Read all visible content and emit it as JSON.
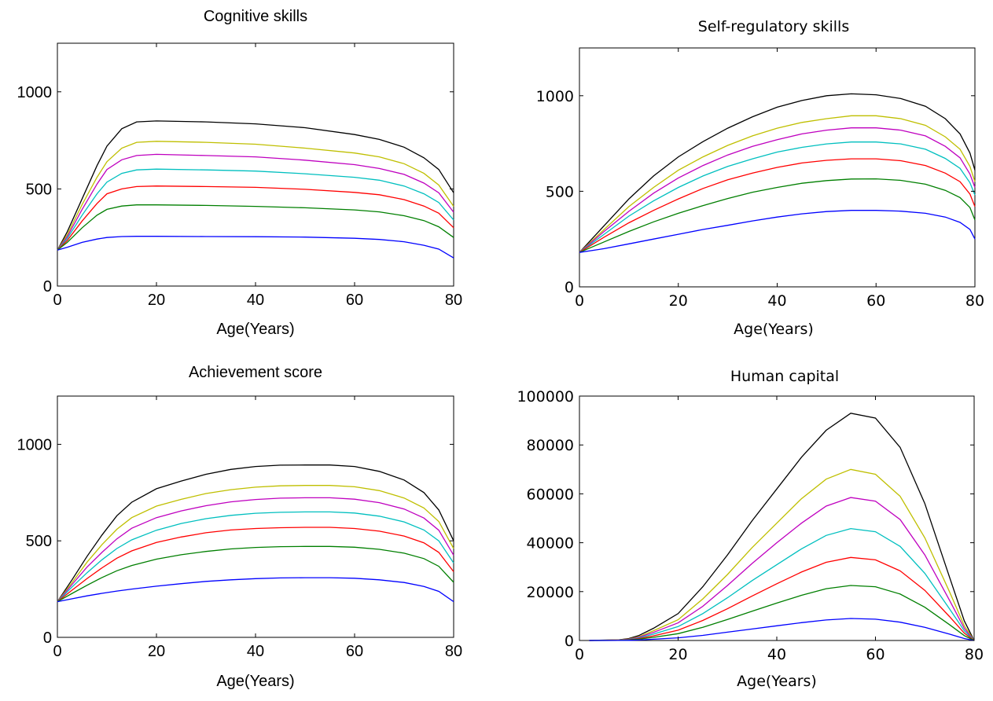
{
  "chart_data": [
    {
      "type": "line",
      "title": "Cognitive skills",
      "xlabel": "Age(Years)",
      "ylabel": "",
      "xlim": [
        0,
        80
      ],
      "ylim": [
        0,
        1250
      ],
      "xticks": [
        0,
        20,
        40,
        60,
        80
      ],
      "xtick_labels": [
        "0",
        "20",
        "40",
        "60",
        "80"
      ],
      "yticks": [
        0,
        500,
        1000
      ],
      "ytick_labels": [
        "0",
        "500",
        "1000"
      ],
      "grid": false,
      "x": [
        0,
        2,
        5,
        8,
        10,
        13,
        16,
        20,
        30,
        40,
        50,
        60,
        65,
        70,
        74,
        77,
        80
      ],
      "series": [
        {
          "color": "#000000",
          "values": [
            185,
            280,
            450,
            620,
            720,
            810,
            845,
            850,
            845,
            835,
            815,
            780,
            755,
            715,
            660,
            600,
            480
          ]
        },
        {
          "color": "#bfbf00",
          "values": [
            185,
            265,
            420,
            560,
            640,
            710,
            740,
            745,
            740,
            730,
            710,
            685,
            665,
            630,
            580,
            520,
            410
          ]
        },
        {
          "color": "#bf00bf",
          "values": [
            185,
            255,
            395,
            525,
            600,
            650,
            672,
            678,
            672,
            665,
            648,
            625,
            605,
            575,
            530,
            480,
            380
          ]
        },
        {
          "color": "#00bfbf",
          "values": [
            185,
            245,
            365,
            475,
            535,
            580,
            598,
            602,
            598,
            592,
            578,
            560,
            545,
            515,
            475,
            430,
            340
          ]
        },
        {
          "color": "#ff0000",
          "values": [
            185,
            235,
            335,
            425,
            475,
            500,
            512,
            515,
            512,
            508,
            498,
            482,
            470,
            445,
            412,
            375,
            300
          ]
        },
        {
          "color": "#007f00",
          "values": [
            185,
            225,
            300,
            365,
            395,
            412,
            418,
            418,
            415,
            410,
            403,
            392,
            382,
            362,
            337,
            305,
            250
          ]
        },
        {
          "color": "#0000ff",
          "values": [
            185,
            200,
            225,
            242,
            250,
            255,
            256,
            256,
            255,
            254,
            252,
            246,
            240,
            228,
            210,
            190,
            145
          ]
        }
      ]
    },
    {
      "type": "line",
      "title": "Self-regulatory skills",
      "xlabel": "Age(Years)",
      "ylabel": "",
      "xlim": [
        0,
        80
      ],
      "ylim": [
        0,
        1250
      ],
      "xticks": [
        0,
        20,
        40,
        60,
        80
      ],
      "xtick_labels": [
        "0",
        "20",
        "40",
        "60",
        "80"
      ],
      "yticks": [
        0,
        500,
        1000
      ],
      "ytick_labels": [
        "0",
        "500",
        "1000"
      ],
      "grid": false,
      "x": [
        0,
        5,
        10,
        15,
        20,
        25,
        30,
        35,
        40,
        45,
        50,
        55,
        60,
        65,
        70,
        74,
        77,
        79,
        80
      ],
      "series": [
        {
          "color": "#000000",
          "values": [
            180,
            320,
            460,
            580,
            680,
            760,
            830,
            890,
            940,
            975,
            1000,
            1010,
            1005,
            985,
            945,
            880,
            800,
            700,
            610
          ]
        },
        {
          "color": "#bfbf00",
          "values": [
            180,
            300,
            420,
            520,
            610,
            680,
            740,
            790,
            830,
            860,
            880,
            895,
            895,
            880,
            845,
            785,
            720,
            630,
            550
          ]
        },
        {
          "color": "#bf00bf",
          "values": [
            180,
            290,
            395,
            490,
            570,
            635,
            690,
            735,
            770,
            800,
            820,
            832,
            832,
            820,
            790,
            735,
            675,
            590,
            520
          ]
        },
        {
          "color": "#00bfbf",
          "values": [
            180,
            275,
            370,
            450,
            520,
            580,
            630,
            670,
            705,
            730,
            748,
            758,
            758,
            748,
            720,
            672,
            620,
            545,
            480
          ]
        },
        {
          "color": "#ff0000",
          "values": [
            180,
            260,
            335,
            400,
            460,
            515,
            560,
            595,
            625,
            648,
            662,
            670,
            670,
            660,
            635,
            595,
            550,
            485,
            420
          ]
        },
        {
          "color": "#007f00",
          "values": [
            180,
            235,
            290,
            340,
            385,
            425,
            462,
            495,
            520,
            542,
            556,
            564,
            565,
            557,
            537,
            505,
            467,
            415,
            350
          ]
        },
        {
          "color": "#0000ff",
          "values": [
            180,
            200,
            225,
            250,
            275,
            300,
            322,
            345,
            365,
            382,
            394,
            400,
            400,
            396,
            385,
            365,
            337,
            300,
            250
          ]
        }
      ]
    },
    {
      "type": "line",
      "title": "Achievement score",
      "xlabel": "Age(Years)",
      "ylabel": "",
      "xlim": [
        0,
        80
      ],
      "ylim": [
        0,
        1250
      ],
      "xticks": [
        0,
        20,
        40,
        60,
        80
      ],
      "xtick_labels": [
        "0",
        "20",
        "40",
        "60",
        "80"
      ],
      "yticks": [
        0,
        500,
        1000
      ],
      "ytick_labels": [
        "0",
        "500",
        "1000"
      ],
      "grid": false,
      "x": [
        0,
        3,
        6,
        9,
        12,
        15,
        20,
        25,
        30,
        35,
        40,
        45,
        50,
        55,
        60,
        65,
        70,
        74,
        77,
        80
      ],
      "series": [
        {
          "color": "#000000",
          "values": [
            185,
            300,
            420,
            530,
            630,
            700,
            770,
            810,
            845,
            870,
            885,
            892,
            893,
            893,
            885,
            860,
            815,
            750,
            660,
            500
          ]
        },
        {
          "color": "#bfbf00",
          "values": [
            185,
            285,
            390,
            480,
            560,
            620,
            680,
            715,
            745,
            765,
            778,
            785,
            787,
            787,
            780,
            760,
            722,
            670,
            600,
            460
          ]
        },
        {
          "color": "#bf00bf",
          "values": [
            185,
            275,
            365,
            440,
            510,
            565,
            620,
            655,
            682,
            702,
            714,
            721,
            723,
            723,
            716,
            698,
            665,
            618,
            555,
            425
          ]
        },
        {
          "color": "#00bfbf",
          "values": [
            185,
            262,
            335,
            402,
            460,
            505,
            555,
            590,
            615,
            632,
            643,
            648,
            650,
            650,
            644,
            628,
            598,
            556,
            500,
            385
          ]
        },
        {
          "color": "#ff0000",
          "values": [
            185,
            245,
            305,
            360,
            410,
            448,
            492,
            520,
            542,
            556,
            564,
            568,
            570,
            570,
            564,
            550,
            525,
            490,
            440,
            340
          ]
        },
        {
          "color": "#007f00",
          "values": [
            185,
            228,
            270,
            310,
            345,
            372,
            405,
            428,
            445,
            458,
            466,
            470,
            471,
            471,
            467,
            456,
            436,
            408,
            368,
            285
          ]
        },
        {
          "color": "#0000ff",
          "values": [
            185,
            200,
            215,
            228,
            240,
            250,
            265,
            278,
            290,
            298,
            304,
            308,
            309,
            309,
            306,
            298,
            284,
            264,
            238,
            185
          ]
        }
      ]
    },
    {
      "type": "line",
      "title": "Human capital",
      "xlabel": "Age(Years)",
      "ylabel": "",
      "xlim": [
        0,
        80
      ],
      "ylim": [
        0,
        100000
      ],
      "xticks": [
        0,
        20,
        40,
        60,
        80
      ],
      "xtick_labels": [
        "0",
        "20",
        "40",
        "60",
        "80"
      ],
      "yticks": [
        0,
        20000,
        40000,
        60000,
        80000,
        100000
      ],
      "ytick_labels": [
        "0",
        "20000",
        "40000",
        "60000",
        "80000",
        "100000"
      ],
      "grid": false,
      "x": [
        2,
        8,
        10,
        12,
        15,
        20,
        25,
        30,
        35,
        40,
        45,
        50,
        55,
        60,
        65,
        70,
        75,
        78,
        80
      ],
      "series": [
        {
          "color": "#000000",
          "values": [
            0,
            300,
            800,
            2000,
            5000,
            11000,
            22000,
            35000,
            49000,
            62000,
            75000,
            86000,
            93000,
            91000,
            79000,
            56000,
            26000,
            8000,
            0
          ]
        },
        {
          "color": "#bfbf00",
          "values": [
            0,
            250,
            600,
            1500,
            4000,
            8500,
            17000,
            27000,
            38000,
            48000,
            58000,
            66000,
            70000,
            68000,
            59000,
            42000,
            20000,
            6000,
            0
          ]
        },
        {
          "color": "#bf00bf",
          "values": [
            0,
            200,
            500,
            1300,
            3300,
            7200,
            14000,
            22500,
            31500,
            40000,
            48000,
            55000,
            58500,
            57000,
            49500,
            35000,
            16500,
            5000,
            0
          ]
        },
        {
          "color": "#00bfbf",
          "values": [
            0,
            150,
            400,
            1000,
            2600,
            5700,
            11000,
            17500,
            24500,
            31000,
            37500,
            43000,
            45800,
            44500,
            38500,
            27500,
            13000,
            4000,
            0
          ]
        },
        {
          "color": "#ff0000",
          "values": [
            0,
            120,
            300,
            750,
            1900,
            4200,
            8200,
            13000,
            18200,
            23200,
            28000,
            32000,
            34000,
            33000,
            28500,
            20500,
            9800,
            3000,
            0
          ]
        },
        {
          "color": "#007f00",
          "values": [
            0,
            80,
            200,
            500,
            1300,
            2800,
            5400,
            8600,
            12000,
            15300,
            18500,
            21200,
            22500,
            22000,
            19000,
            13600,
            6500,
            2000,
            0
          ]
        },
        {
          "color": "#0000ff",
          "values": [
            0,
            30,
            80,
            200,
            500,
            1100,
            2100,
            3400,
            4700,
            6000,
            7300,
            8400,
            9000,
            8700,
            7500,
            5400,
            2600,
            800,
            0
          ]
        }
      ]
    }
  ]
}
